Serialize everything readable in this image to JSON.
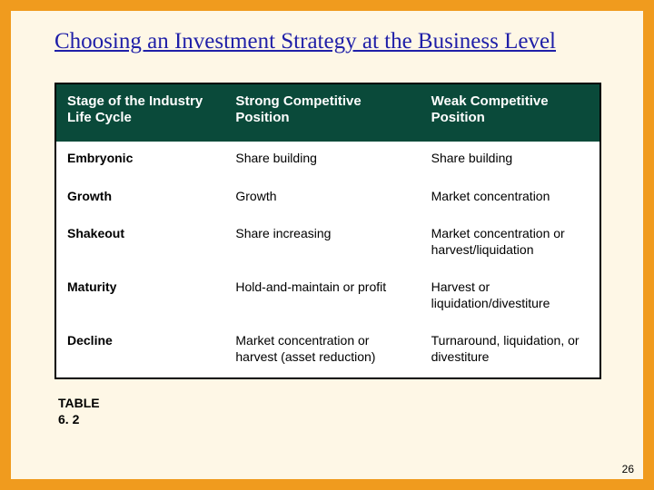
{
  "title": "Choosing an Investment Strategy at the Business Level",
  "table": {
    "type": "table",
    "columns": [
      "Stage of the Industry Life Cycle",
      "Strong Competitive Position",
      "Weak Competitive Position"
    ],
    "rows": [
      [
        "Embryonic",
        "Share building",
        "Share building"
      ],
      [
        "Growth",
        "Growth",
        "Market concentration"
      ],
      [
        "Shakeout",
        "Share increasing",
        "Market concentration or harvest/liquidation"
      ],
      [
        "Maturity",
        "Hold-and-maintain or profit",
        "Harvest or liquidation/divestiture"
      ],
      [
        "Decline",
        "Market concentration or harvest (asset reduction)",
        "Turnaround, liquidation, or divestiture"
      ]
    ],
    "header_bg": "#0a4a3a",
    "header_text_color": "#ffffff",
    "body_bg": "#ffffff",
    "border_color": "#000000",
    "header_fontsize": 15,
    "body_fontsize": 14,
    "col_widths_pct": [
      31,
      36,
      33
    ]
  },
  "footer_label_line1": "TABLE",
  "footer_label_line2": "6. 2",
  "page_number": "26",
  "colors": {
    "slide_bg": "#fef7e6",
    "slide_border": "#f09b1e",
    "title_color": "#1f1fa8"
  }
}
